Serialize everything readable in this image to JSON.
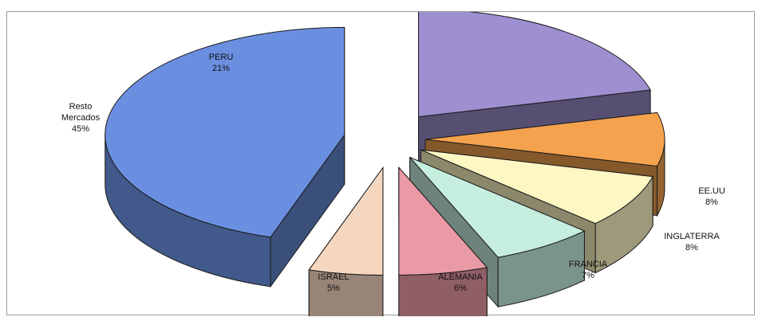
{
  "chart_data": {
    "type": "pie",
    "style": "3d-exploded",
    "legend": "none",
    "slices": [
      {
        "label_lines": [
          "PERU"
        ],
        "percent_label": "21%",
        "value": 21,
        "color": "#9d8fd0"
      },
      {
        "label_lines": [
          "EE.UU"
        ],
        "percent_label": "8%",
        "value": 8,
        "color": "#f4a24e"
      },
      {
        "label_lines": [
          "INGLATERRA"
        ],
        "percent_label": "8%",
        "value": 8,
        "color": "#fdf7c4"
      },
      {
        "label_lines": [
          "FRANCIA"
        ],
        "percent_label": "7%",
        "value": 7,
        "color": "#c6eedf"
      },
      {
        "label_lines": [
          "ALEMANIA"
        ],
        "percent_label": "6%",
        "value": 6,
        "color": "#e99aa5"
      },
      {
        "label_lines": [
          "ISRAEL"
        ],
        "percent_label": "5%",
        "value": 5,
        "color": "#f5d7c0"
      },
      {
        "label_lines": [
          "Resto",
          "Mercados"
        ],
        "percent_label": "45%",
        "value": 45,
        "color": "#6b8fe0"
      }
    ]
  }
}
